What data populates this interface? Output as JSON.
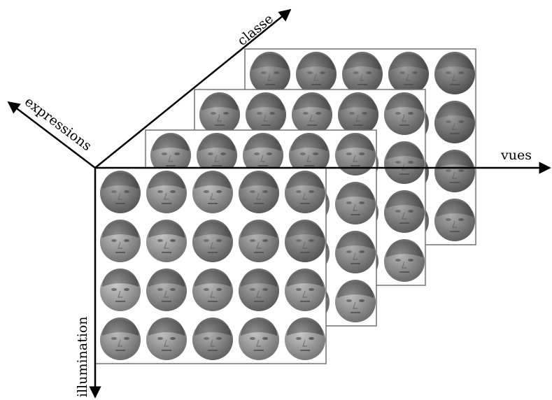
{
  "axes": {
    "classe": "classe",
    "expressions": "expressions",
    "vues": "vues",
    "illumination": "illumination"
  },
  "layers": [
    {
      "rows": 4,
      "cols": 5,
      "tone": [
        110,
        115,
        120,
        112,
        118
      ]
    },
    {
      "rows": 4,
      "cols": 5,
      "tone": [
        128,
        122,
        135,
        118,
        140
      ]
    },
    {
      "rows": 4,
      "cols": 5,
      "tone": [
        140,
        132,
        145,
        138,
        150
      ]
    },
    {
      "rows": 4,
      "cols": 5,
      "tone": [
        120,
        150,
        160,
        130,
        140
      ]
    }
  ],
  "colors": {
    "axis": "#000000",
    "frame": "#707070",
    "face_dark": "#3c3c3c",
    "face_light": "#d8d8d8"
  }
}
